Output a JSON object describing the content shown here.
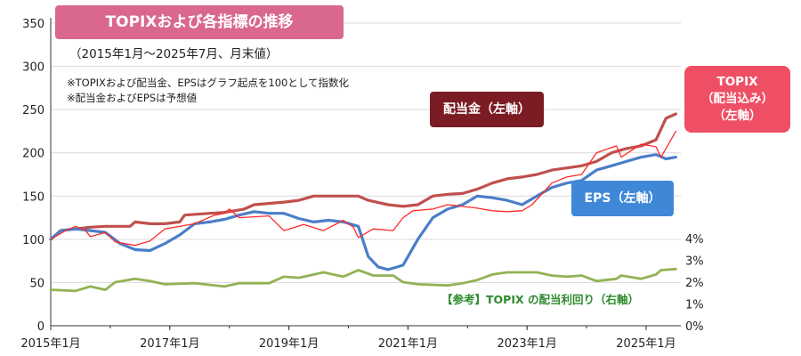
{
  "header": {
    "title": "TOPIXおよび各指標の推移",
    "subtitle": "（2015年1月～2025年7月、月末値）",
    "notes": [
      "※TOPIXおよび配当金、EPSはグラフ起点を100として指数化",
      "※配当金およびEPSは予想値"
    ]
  },
  "callouts": {
    "dividend": "配当金（左軸）",
    "eps": "EPS（左軸）",
    "topix_lines": [
      "TOPIX",
      "（配当込み）",
      "（左軸）"
    ],
    "yield": "【参考】TOPIX の配当利回り（右軸）"
  },
  "colors": {
    "topix": "#ff2a2a",
    "dividend": "#c0504d",
    "eps": "#4a7ec8",
    "yield": "#92b355",
    "grid": "#d9d9d9"
  },
  "chart_data": {
    "type": "line",
    "x_tick_labels": [
      "2015年1月",
      "2017年1月",
      "2019年1月",
      "2021年1月",
      "2023年1月",
      "2025年1月"
    ],
    "x_range": [
      "2015-01",
      "2025-07"
    ],
    "left_axis": {
      "ylim": [
        0,
        350
      ],
      "ticks": [
        "0",
        "50",
        "100",
        "150",
        "200",
        "250",
        "300",
        "350"
      ]
    },
    "right_axis": {
      "ylim": [
        0,
        4
      ],
      "ticks": [
        "0%",
        "1%",
        "2%",
        "3%",
        "4%"
      ]
    },
    "series": [
      {
        "name": "TOPIX（配当込み）",
        "axis": "left",
        "points": [
          [
            "2015-01",
            100
          ],
          [
            "2015-04",
            110
          ],
          [
            "2015-06",
            115
          ],
          [
            "2015-08",
            110
          ],
          [
            "2015-09",
            103
          ],
          [
            "2015-12",
            108
          ],
          [
            "2016-02",
            97
          ],
          [
            "2016-06",
            93
          ],
          [
            "2016-09",
            98
          ],
          [
            "2016-12",
            112
          ],
          [
            "2017-06",
            118
          ],
          [
            "2017-10",
            128
          ],
          [
            "2017-12",
            130
          ],
          [
            "2018-01",
            135
          ],
          [
            "2018-03",
            125
          ],
          [
            "2018-09",
            127
          ],
          [
            "2018-12",
            110
          ],
          [
            "2019-04",
            117
          ],
          [
            "2019-08",
            110
          ],
          [
            "2019-12",
            122
          ],
          [
            "2020-02",
            114
          ],
          [
            "2020-03",
            102
          ],
          [
            "2020-06",
            112
          ],
          [
            "2020-10",
            110
          ],
          [
            "2020-12",
            125
          ],
          [
            "2021-02",
            133
          ],
          [
            "2021-06",
            135
          ],
          [
            "2021-09",
            140
          ],
          [
            "2021-12",
            138
          ],
          [
            "2022-03",
            136
          ],
          [
            "2022-06",
            133
          ],
          [
            "2022-09",
            132
          ],
          [
            "2022-12",
            133
          ],
          [
            "2023-02",
            140
          ],
          [
            "2023-06",
            165
          ],
          [
            "2023-09",
            172
          ],
          [
            "2023-12",
            175
          ],
          [
            "2024-03",
            200
          ],
          [
            "2024-07",
            208
          ],
          [
            "2024-08",
            195
          ],
          [
            "2024-12",
            210
          ],
          [
            "2025-03",
            207
          ],
          [
            "2025-04",
            195
          ],
          [
            "2025-06",
            215
          ],
          [
            "2025-07",
            225
          ]
        ]
      },
      {
        "name": "配当金",
        "axis": "left",
        "points": [
          [
            "2015-01",
            100
          ],
          [
            "2015-03",
            110
          ],
          [
            "2015-06",
            112
          ],
          [
            "2015-09",
            114
          ],
          [
            "2015-12",
            115
          ],
          [
            "2016-05",
            115
          ],
          [
            "2016-06",
            120
          ],
          [
            "2016-09",
            118
          ],
          [
            "2016-12",
            118
          ],
          [
            "2017-03",
            120
          ],
          [
            "2017-04",
            128
          ],
          [
            "2017-09",
            130
          ],
          [
            "2017-12",
            131
          ],
          [
            "2018-04",
            135
          ],
          [
            "2018-06",
            140
          ],
          [
            "2018-12",
            143
          ],
          [
            "2019-03",
            145
          ],
          [
            "2019-06",
            150
          ],
          [
            "2019-12",
            150
          ],
          [
            "2020-03",
            150
          ],
          [
            "2020-05",
            145
          ],
          [
            "2020-09",
            140
          ],
          [
            "2020-12",
            138
          ],
          [
            "2021-03",
            140
          ],
          [
            "2021-06",
            150
          ],
          [
            "2021-09",
            152
          ],
          [
            "2021-12",
            153
          ],
          [
            "2022-03",
            158
          ],
          [
            "2022-06",
            165
          ],
          [
            "2022-09",
            170
          ],
          [
            "2022-12",
            172
          ],
          [
            "2023-03",
            175
          ],
          [
            "2023-06",
            180
          ],
          [
            "2023-12",
            185
          ],
          [
            "2024-03",
            190
          ],
          [
            "2024-06",
            200
          ],
          [
            "2024-09",
            205
          ],
          [
            "2024-12",
            208
          ],
          [
            "2025-03",
            215
          ],
          [
            "2025-05",
            240
          ],
          [
            "2025-07",
            245
          ]
        ]
      },
      {
        "name": "EPS",
        "axis": "left",
        "points": [
          [
            "2015-01",
            100
          ],
          [
            "2015-03",
            110
          ],
          [
            "2015-06",
            112
          ],
          [
            "2015-09",
            110
          ],
          [
            "2015-12",
            108
          ],
          [
            "2016-03",
            95
          ],
          [
            "2016-06",
            88
          ],
          [
            "2016-09",
            87
          ],
          [
            "2016-12",
            95
          ],
          [
            "2017-03",
            105
          ],
          [
            "2017-06",
            118
          ],
          [
            "2017-09",
            120
          ],
          [
            "2017-12",
            123
          ],
          [
            "2018-03",
            128
          ],
          [
            "2018-06",
            132
          ],
          [
            "2018-09",
            130
          ],
          [
            "2018-12",
            130
          ],
          [
            "2019-03",
            124
          ],
          [
            "2019-06",
            120
          ],
          [
            "2019-09",
            122
          ],
          [
            "2019-12",
            120
          ],
          [
            "2020-03",
            115
          ],
          [
            "2020-05",
            80
          ],
          [
            "2020-07",
            68
          ],
          [
            "2020-09",
            65
          ],
          [
            "2020-12",
            70
          ],
          [
            "2021-01",
            80
          ],
          [
            "2021-03",
            100
          ],
          [
            "2021-06",
            125
          ],
          [
            "2021-09",
            135
          ],
          [
            "2021-12",
            140
          ],
          [
            "2022-03",
            150
          ],
          [
            "2022-06",
            148
          ],
          [
            "2022-09",
            145
          ],
          [
            "2022-12",
            140
          ],
          [
            "2023-03",
            150
          ],
          [
            "2023-06",
            160
          ],
          [
            "2023-09",
            165
          ],
          [
            "2023-12",
            168
          ],
          [
            "2024-03",
            180
          ],
          [
            "2024-06",
            185
          ],
          [
            "2024-09",
            190
          ],
          [
            "2024-12",
            195
          ],
          [
            "2025-03",
            198
          ],
          [
            "2025-05",
            193
          ],
          [
            "2025-07",
            195
          ]
        ]
      },
      {
        "name": "TOPIXの配当利回り",
        "axis": "right",
        "points": [
          [
            "2015-01",
            1.65
          ],
          [
            "2015-06",
            1.6
          ],
          [
            "2015-09",
            1.8
          ],
          [
            "2015-12",
            1.65
          ],
          [
            "2016-02",
            2.0
          ],
          [
            "2016-06",
            2.15
          ],
          [
            "2016-09",
            2.05
          ],
          [
            "2016-12",
            1.9
          ],
          [
            "2017-06",
            1.95
          ],
          [
            "2017-12",
            1.8
          ],
          [
            "2018-03",
            1.95
          ],
          [
            "2018-09",
            1.95
          ],
          [
            "2018-12",
            2.25
          ],
          [
            "2019-03",
            2.2
          ],
          [
            "2019-08",
            2.45
          ],
          [
            "2019-12",
            2.25
          ],
          [
            "2020-03",
            2.55
          ],
          [
            "2020-06",
            2.3
          ],
          [
            "2020-10",
            2.3
          ],
          [
            "2020-12",
            2.0
          ],
          [
            "2021-03",
            1.9
          ],
          [
            "2021-09",
            1.85
          ],
          [
            "2021-12",
            1.95
          ],
          [
            "2022-03",
            2.1
          ],
          [
            "2022-06",
            2.35
          ],
          [
            "2022-09",
            2.45
          ],
          [
            "2022-12",
            2.45
          ],
          [
            "2023-03",
            2.45
          ],
          [
            "2023-06",
            2.3
          ],
          [
            "2023-09",
            2.25
          ],
          [
            "2023-12",
            2.3
          ],
          [
            "2024-03",
            2.05
          ],
          [
            "2024-07",
            2.15
          ],
          [
            "2024-08",
            2.3
          ],
          [
            "2024-12",
            2.15
          ],
          [
            "2025-03",
            2.35
          ],
          [
            "2025-04",
            2.55
          ],
          [
            "2025-07",
            2.6
          ]
        ]
      }
    ]
  }
}
